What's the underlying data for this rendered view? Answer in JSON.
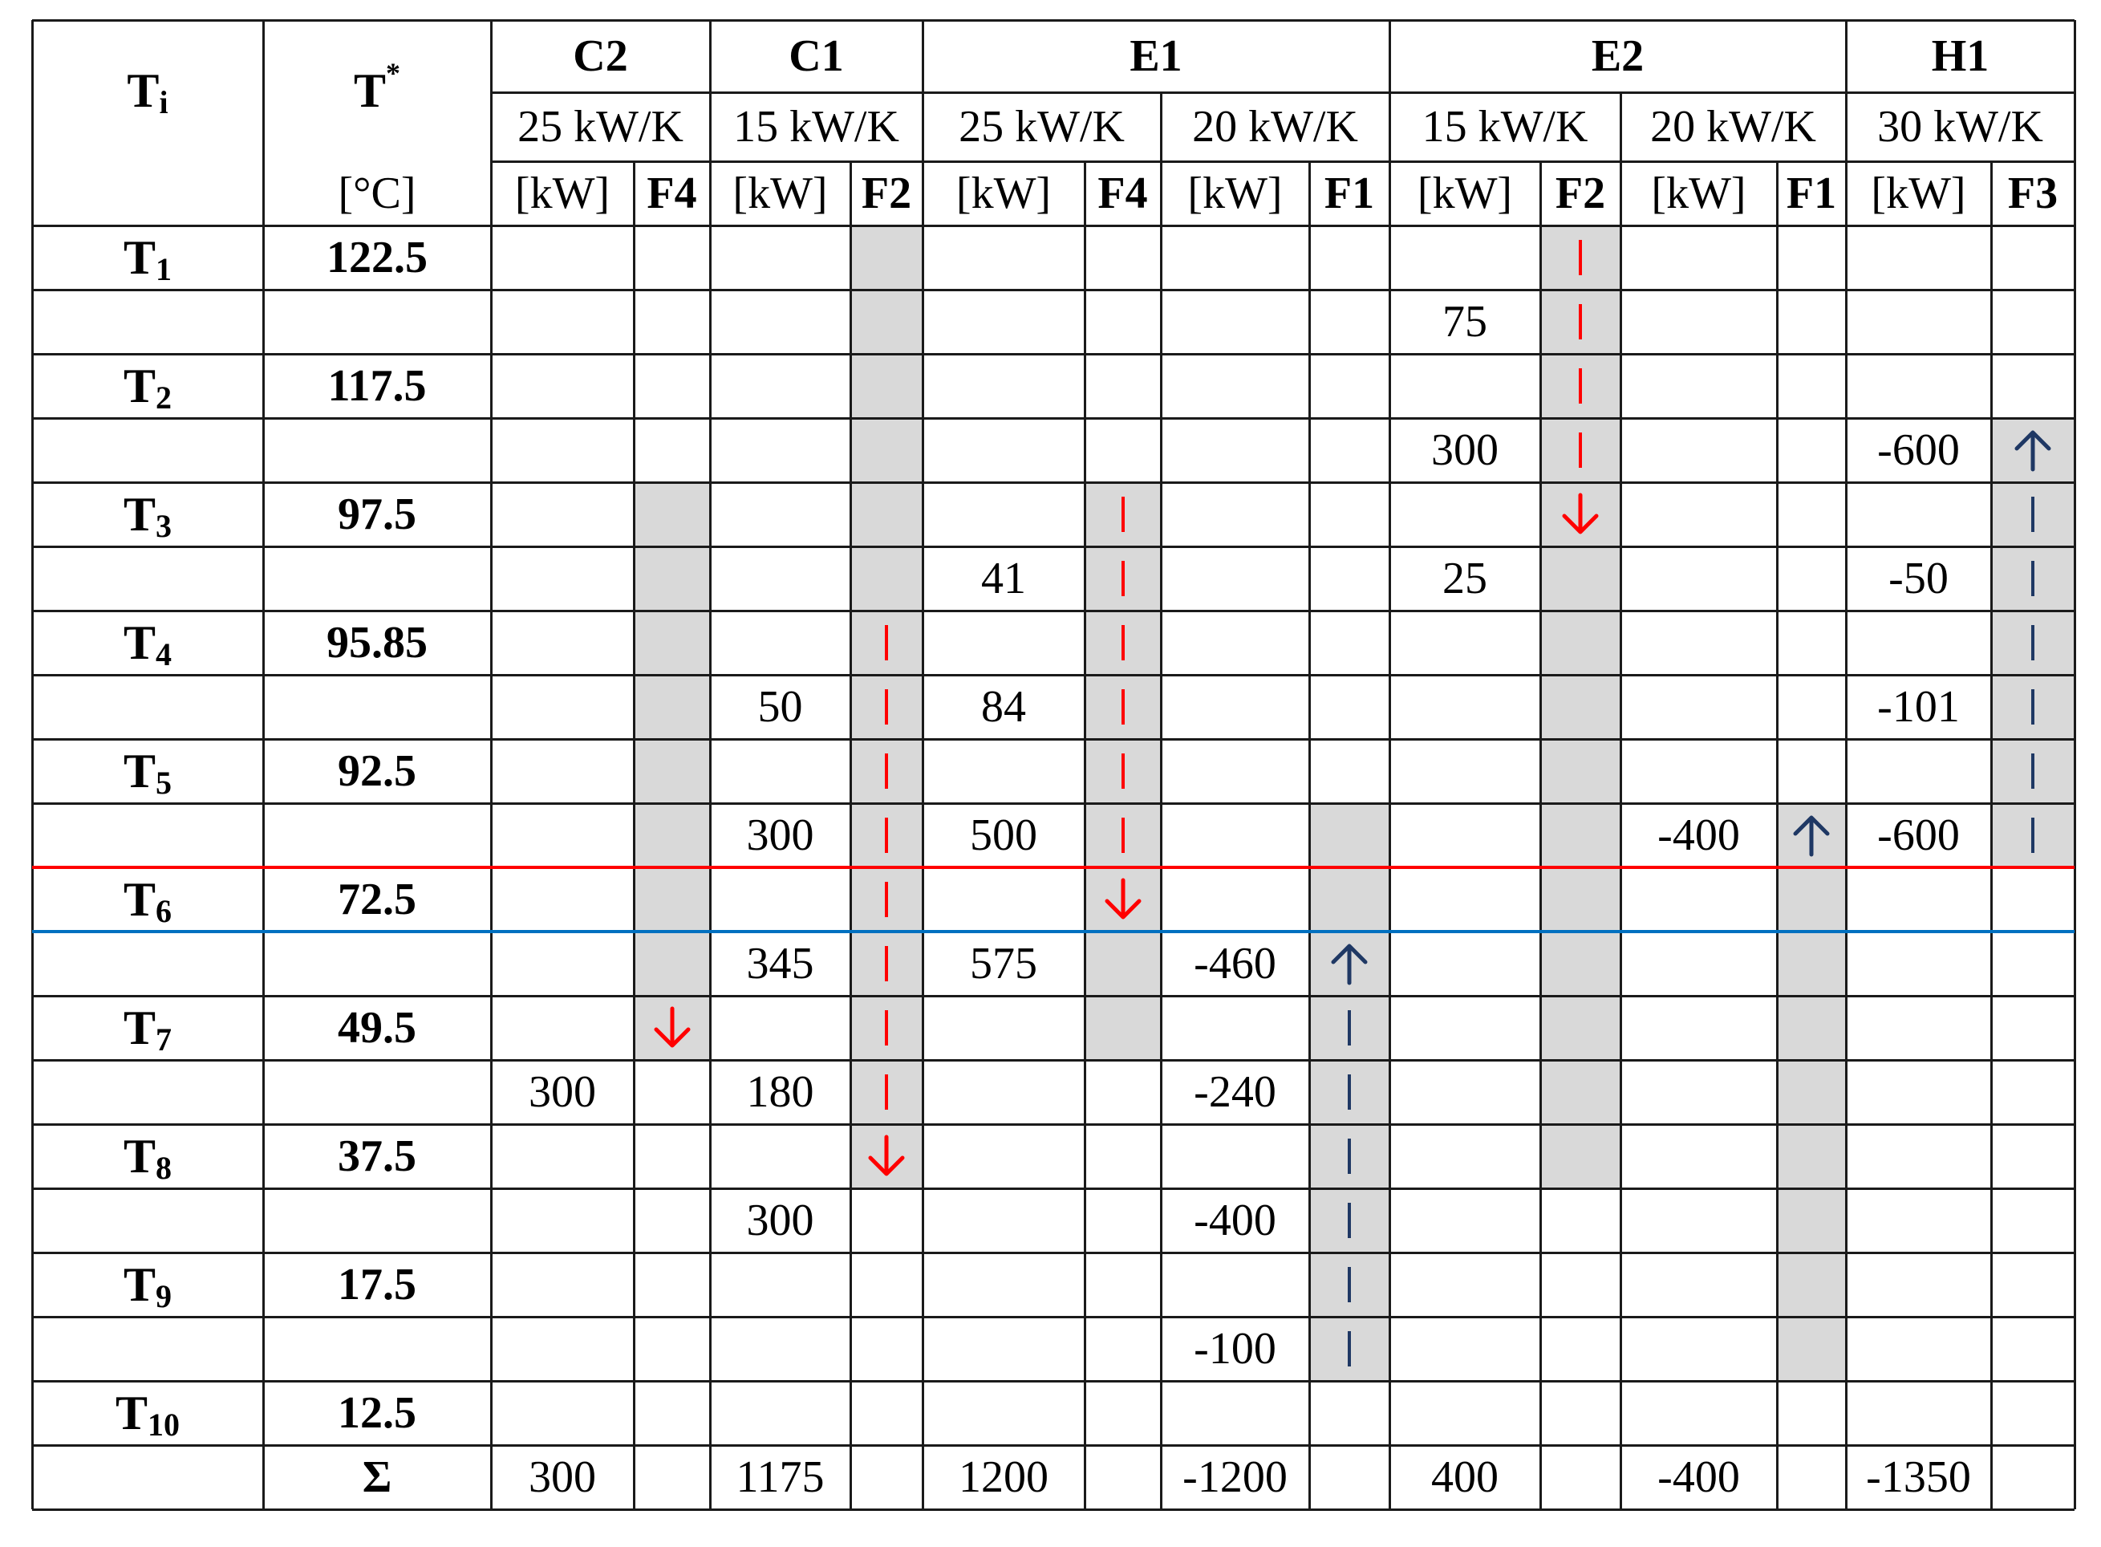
{
  "colors": {
    "hot_flow": "#ff0000",
    "cold_flow": "#1f3864",
    "shade": "#d9d9d9",
    "pinch_red": "#ff0000",
    "pinch_blue": "#0070c0"
  },
  "header": {
    "ti": "T",
    "ti_sub": "i",
    "tstar": "T",
    "tstar_sup": "*",
    "unit_temp": "[°C]",
    "groups": [
      {
        "label": "C2",
        "cp": [
          "25 kW/K"
        ]
      },
      {
        "label": "C1",
        "cp": [
          "15 kW/K"
        ]
      },
      {
        "label": "E1",
        "cp": [
          "25 kW/K",
          "20 kW/K"
        ]
      },
      {
        "label": "E2",
        "cp": [
          "15 kW/K",
          "20 kW/K"
        ]
      },
      {
        "label": "H1",
        "cp": [
          "30 kW/K"
        ]
      }
    ],
    "subcols": [
      {
        "unit": "[kW]",
        "flow": "F4"
      },
      {
        "unit": "[kW]",
        "flow": "F2"
      },
      {
        "unit": "[kW]",
        "flow": "F4"
      },
      {
        "unit": "[kW]",
        "flow": "F1"
      },
      {
        "unit": "[kW]",
        "flow": "F2"
      },
      {
        "unit": "[kW]",
        "flow": "F1"
      },
      {
        "unit": "[kW]",
        "flow": "F3"
      }
    ]
  },
  "temps": [
    {
      "name": "T",
      "sub": "1",
      "value": "122.5"
    },
    {
      "name": "T",
      "sub": "2",
      "value": "117.5"
    },
    {
      "name": "T",
      "sub": "3",
      "value": "97.5"
    },
    {
      "name": "T",
      "sub": "4",
      "value": "95.85"
    },
    {
      "name": "T",
      "sub": "5",
      "value": "92.5"
    },
    {
      "name": "T",
      "sub": "6",
      "value": "72.5"
    },
    {
      "name": "T",
      "sub": "7",
      "value": "49.5"
    },
    {
      "name": "T",
      "sub": "8",
      "value": "37.5"
    },
    {
      "name": "T",
      "sub": "9",
      "value": "17.5"
    },
    {
      "name": "T",
      "sub": "10",
      "value": "12.5"
    }
  ],
  "intervals": [
    [
      "",
      "",
      "",
      "",
      "75",
      "",
      ""
    ],
    [
      "",
      "",
      "",
      "",
      "300",
      "",
      "-600"
    ],
    [
      "",
      "",
      "41",
      "",
      "25",
      "",
      "-50"
    ],
    [
      "",
      "50",
      "84",
      "",
      "",
      "",
      "-101"
    ],
    [
      "",
      "300",
      "500",
      "",
      "",
      "-400",
      "-600"
    ],
    [
      "",
      "345",
      "575",
      "-460",
      "",
      "",
      ""
    ],
    [
      "300",
      "180",
      "",
      "-240",
      "",
      "",
      ""
    ],
    [
      "",
      "300",
      "",
      "-400",
      "",
      "",
      ""
    ],
    [
      "",
      "",
      "",
      "-100",
      "",
      "",
      ""
    ]
  ],
  "sum": {
    "label": "Σ",
    "values": [
      "300",
      "1175",
      "1200",
      "-1200",
      "400",
      "-400",
      "-1350"
    ]
  },
  "flows": [
    {
      "col": 0,
      "dir": "down",
      "shade": [
        4,
        13
      ],
      "line": [
        12,
        13
      ]
    },
    {
      "col": 1,
      "dir": "down",
      "shade": [
        0,
        15
      ],
      "line": [
        6,
        15
      ]
    },
    {
      "col": 2,
      "dir": "down",
      "shade": [
        4,
        13
      ],
      "line": [
        4,
        11
      ]
    },
    {
      "col": 3,
      "dir": "up",
      "shade": [
        9,
        18
      ],
      "line": [
        11,
        18
      ]
    },
    {
      "col": 4,
      "dir": "down",
      "shade": [
        0,
        15
      ],
      "line": [
        0,
        5
      ]
    },
    {
      "col": 5,
      "dir": "up",
      "shade": [
        9,
        18
      ],
      "line": [
        9,
        10
      ]
    },
    {
      "col": 6,
      "dir": "up",
      "shade": [
        3,
        10
      ],
      "line": [
        3,
        10
      ]
    }
  ]
}
